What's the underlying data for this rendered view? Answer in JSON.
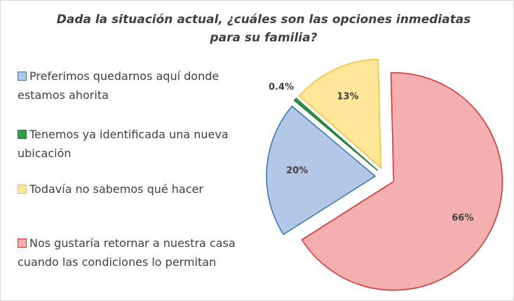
{
  "chart_data": {
    "type": "pie",
    "title": "Dada la situación actual, ¿cuáles son las opciones inmediatas para su familia?",
    "categories": [
      "Preferimos quedarnos aquí donde estamos ahorita",
      "Tenemos ya identificada una nueva ubicación",
      "Todavía no sabemos qué hacer",
      "Nos gustaría retornar a nuestra casa cuando las condiciones lo permitan"
    ],
    "values": [
      20,
      0.4,
      13,
      66
    ],
    "value_labels": [
      "20%",
      "0.4%",
      "13%",
      "66%"
    ],
    "colors": [
      "#b4c7e7",
      "#2e9e4a",
      "#ffe699",
      "#f4b0b0"
    ],
    "edge_colors": [
      "#2e75b6",
      "#1e7a34",
      "#f2c232",
      "#e02b2b"
    ],
    "legend": "left"
  }
}
